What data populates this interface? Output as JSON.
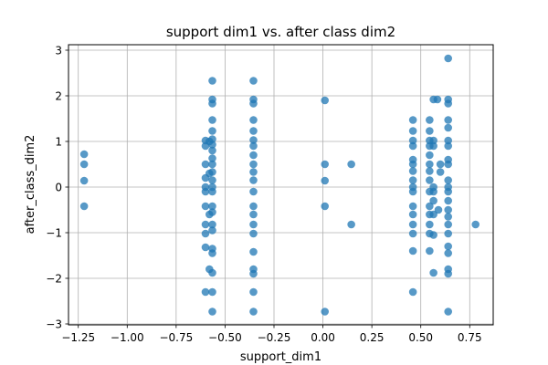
{
  "chart_data": {
    "type": "scatter",
    "title": "support dim1 vs. after class dim2",
    "xlabel": "support_dim1",
    "ylabel": "after_class_dim2",
    "xlim": [
      -1.3,
      0.87
    ],
    "ylim": [
      -3.02,
      3.12
    ],
    "xticks": [
      -1.25,
      -1.0,
      -0.75,
      -0.5,
      -0.25,
      0.0,
      0.25,
      0.5,
      0.75
    ],
    "xtick_labels": [
      "−1.25",
      "−1.00",
      "−0.75",
      "−0.50",
      "−0.25",
      "0.00",
      "0.25",
      "0.50",
      "0.75"
    ],
    "yticks": [
      -3,
      -2,
      -1,
      0,
      1,
      2,
      3
    ],
    "ytick_labels": [
      "−3",
      "−2",
      "−1",
      "0",
      "1",
      "2",
      "3"
    ],
    "grid": true,
    "marker_color": "#1f77b4",
    "marker_alpha": 0.75,
    "points": [
      [
        -1.22,
        0.72
      ],
      [
        -1.22,
        0.5
      ],
      [
        -1.22,
        0.14
      ],
      [
        -1.22,
        -0.42
      ],
      [
        -0.6,
        1.02
      ],
      [
        -0.6,
        0.9
      ],
      [
        -0.6,
        0.5
      ],
      [
        -0.6,
        0.2
      ],
      [
        -0.6,
        0.0
      ],
      [
        -0.6,
        -0.1
      ],
      [
        -0.6,
        -0.42
      ],
      [
        -0.6,
        -0.82
      ],
      [
        -0.6,
        -1.02
      ],
      [
        -0.6,
        -1.32
      ],
      [
        -0.6,
        -2.3
      ],
      [
        -0.58,
        1.0
      ],
      [
        -0.58,
        0.3
      ],
      [
        -0.58,
        -0.6
      ],
      [
        -0.58,
        -1.8
      ],
      [
        -0.565,
        2.33
      ],
      [
        -0.565,
        1.92
      ],
      [
        -0.565,
        1.83
      ],
      [
        -0.565,
        1.47
      ],
      [
        -0.565,
        1.23
      ],
      [
        -0.565,
        1.05
      ],
      [
        -0.565,
        0.93
      ],
      [
        -0.565,
        0.8
      ],
      [
        -0.565,
        0.63
      ],
      [
        -0.565,
        0.5
      ],
      [
        -0.565,
        0.33
      ],
      [
        -0.565,
        0.15
      ],
      [
        -0.565,
        0.0
      ],
      [
        -0.565,
        -0.1
      ],
      [
        -0.565,
        -0.42
      ],
      [
        -0.565,
        -0.55
      ],
      [
        -0.565,
        -0.82
      ],
      [
        -0.565,
        -0.95
      ],
      [
        -0.565,
        -1.35
      ],
      [
        -0.565,
        -1.45
      ],
      [
        -0.565,
        -1.88
      ],
      [
        -0.565,
        -2.3
      ],
      [
        -0.565,
        -2.73
      ],
      [
        -0.355,
        2.33
      ],
      [
        -0.355,
        1.92
      ],
      [
        -0.355,
        1.83
      ],
      [
        -0.355,
        1.47
      ],
      [
        -0.355,
        1.23
      ],
      [
        -0.355,
        1.03
      ],
      [
        -0.355,
        0.9
      ],
      [
        -0.355,
        0.7
      ],
      [
        -0.355,
        0.5
      ],
      [
        -0.355,
        0.33
      ],
      [
        -0.355,
        0.15
      ],
      [
        -0.355,
        -0.1
      ],
      [
        -0.355,
        -0.42
      ],
      [
        -0.355,
        -0.6
      ],
      [
        -0.355,
        -0.82
      ],
      [
        -0.355,
        -1.02
      ],
      [
        -0.355,
        -1.42
      ],
      [
        -0.355,
        -1.8
      ],
      [
        -0.355,
        -1.9
      ],
      [
        -0.355,
        -2.3
      ],
      [
        -0.355,
        -2.73
      ],
      [
        0.01,
        1.9
      ],
      [
        0.01,
        0.5
      ],
      [
        0.01,
        0.14
      ],
      [
        0.01,
        -0.42
      ],
      [
        0.01,
        -2.73
      ],
      [
        0.145,
        0.5
      ],
      [
        0.145,
        -0.82
      ],
      [
        0.46,
        1.47
      ],
      [
        0.46,
        1.23
      ],
      [
        0.46,
        1.02
      ],
      [
        0.46,
        0.9
      ],
      [
        0.46,
        0.6
      ],
      [
        0.46,
        0.5
      ],
      [
        0.46,
        0.35
      ],
      [
        0.46,
        0.15
      ],
      [
        0.46,
        0.0
      ],
      [
        0.46,
        -0.1
      ],
      [
        0.46,
        -0.42
      ],
      [
        0.46,
        -0.6
      ],
      [
        0.46,
        -0.82
      ],
      [
        0.46,
        -1.02
      ],
      [
        0.46,
        -1.4
      ],
      [
        0.46,
        -2.3
      ],
      [
        0.545,
        1.47
      ],
      [
        0.545,
        1.23
      ],
      [
        0.545,
        1.02
      ],
      [
        0.545,
        0.9
      ],
      [
        0.545,
        0.7
      ],
      [
        0.545,
        0.5
      ],
      [
        0.545,
        0.35
      ],
      [
        0.545,
        0.15
      ],
      [
        0.545,
        -0.1
      ],
      [
        0.545,
        -0.42
      ],
      [
        0.545,
        -0.6
      ],
      [
        0.545,
        -0.82
      ],
      [
        0.545,
        -1.02
      ],
      [
        0.545,
        -1.4
      ],
      [
        0.565,
        1.92
      ],
      [
        0.565,
        1.02
      ],
      [
        0.565,
        0.9
      ],
      [
        0.565,
        0.0
      ],
      [
        0.565,
        -0.1
      ],
      [
        0.565,
        -0.3
      ],
      [
        0.565,
        -0.6
      ],
      [
        0.565,
        -1.05
      ],
      [
        0.565,
        -1.88
      ],
      [
        0.585,
        1.92
      ],
      [
        0.6,
        0.5
      ],
      [
        0.6,
        0.33
      ],
      [
        0.59,
        -0.5
      ],
      [
        0.64,
        2.82
      ],
      [
        0.64,
        1.92
      ],
      [
        0.64,
        1.83
      ],
      [
        0.64,
        1.47
      ],
      [
        0.64,
        1.3
      ],
      [
        0.64,
        1.02
      ],
      [
        0.64,
        0.9
      ],
      [
        0.64,
        0.5
      ],
      [
        0.64,
        0.6
      ],
      [
        0.64,
        0.15
      ],
      [
        0.64,
        0.0
      ],
      [
        0.64,
        -0.1
      ],
      [
        0.64,
        -0.3
      ],
      [
        0.64,
        -0.5
      ],
      [
        0.64,
        -0.65
      ],
      [
        0.64,
        -0.82
      ],
      [
        0.64,
        -1.02
      ],
      [
        0.64,
        -1.3
      ],
      [
        0.64,
        -1.45
      ],
      [
        0.64,
        -1.8
      ],
      [
        0.64,
        -1.9
      ],
      [
        0.64,
        -2.73
      ],
      [
        0.78,
        -0.82
      ]
    ]
  }
}
